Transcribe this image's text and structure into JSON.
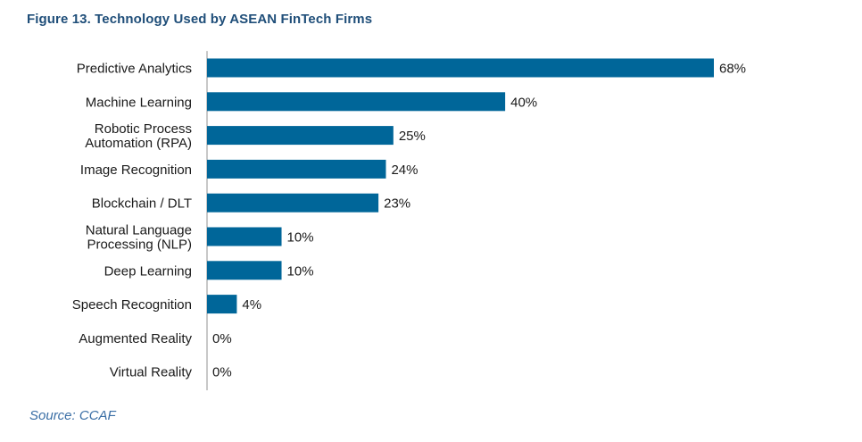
{
  "title": "Figure 13. Technology Used by ASEAN FinTech Firms",
  "source": "Source: CCAF",
  "colors": {
    "bar": "#006699",
    "title": "#1f4e79",
    "source": "#3a6ea5",
    "axis": "#c8c8c8"
  },
  "chart_data": {
    "type": "bar",
    "orientation": "horizontal",
    "title": "Figure 13. Technology Used by ASEAN FinTech Firms",
    "xlabel": "",
    "ylabel": "",
    "xlim": [
      0,
      68
    ],
    "grid": false,
    "legend": "none",
    "value_suffix": "%",
    "categories": [
      [
        "Predictive Analytics"
      ],
      [
        "Machine Learning"
      ],
      [
        "Robotic Process",
        "Automation (RPA)"
      ],
      [
        "Image Recognition"
      ],
      [
        "Blockchain / DLT"
      ],
      [
        "Natural Language",
        "Processing (NLP)"
      ],
      [
        "Deep Learning"
      ],
      [
        "Speech Recognition"
      ],
      [
        "Augmented Reality"
      ],
      [
        "Virtual Reality"
      ]
    ],
    "values": [
      68,
      40,
      25,
      24,
      23,
      10,
      10,
      4,
      0,
      0
    ]
  }
}
